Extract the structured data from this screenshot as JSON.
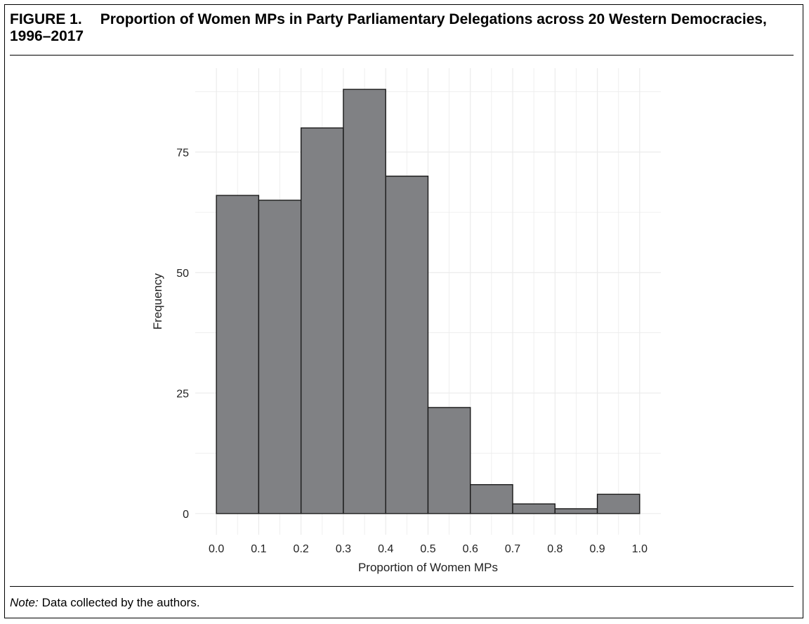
{
  "figure": {
    "label": "FIGURE 1.",
    "title": "Proportion of Women MPs in Party Parliamentary Delegations across 20 Western Democracies, 1996–2017"
  },
  "note": {
    "label": "Note:",
    "text": "Data collected by the authors."
  },
  "chart_data": {
    "type": "bar",
    "subtype": "histogram",
    "bins": [
      {
        "start": 0.0,
        "end": 0.1,
        "value": 66
      },
      {
        "start": 0.1,
        "end": 0.2,
        "value": 65
      },
      {
        "start": 0.2,
        "end": 0.3,
        "value": 80
      },
      {
        "start": 0.3,
        "end": 0.4,
        "value": 88
      },
      {
        "start": 0.4,
        "end": 0.5,
        "value": 70
      },
      {
        "start": 0.5,
        "end": 0.6,
        "value": 22
      },
      {
        "start": 0.6,
        "end": 0.7,
        "value": 6
      },
      {
        "start": 0.7,
        "end": 0.8,
        "value": 2
      },
      {
        "start": 0.8,
        "end": 0.9,
        "value": 1
      },
      {
        "start": 0.9,
        "end": 1.0,
        "value": 4
      }
    ],
    "xlabel": "Proportion of Women MPs",
    "ylabel": "Frequency",
    "xticks": [
      "0.0",
      "0.1",
      "0.2",
      "0.3",
      "0.4",
      "0.5",
      "0.6",
      "0.7",
      "0.8",
      "0.9",
      "1.0"
    ],
    "yticks": [
      "0",
      "25",
      "50",
      "75"
    ],
    "xlim": [
      -0.05,
      1.05
    ],
    "ylim": [
      -4.4,
      92.4
    ],
    "grid": true,
    "colors": {
      "bar_fill": "#808184",
      "bar_stroke": "#1a1a1a",
      "grid": "#ebebeb"
    }
  }
}
